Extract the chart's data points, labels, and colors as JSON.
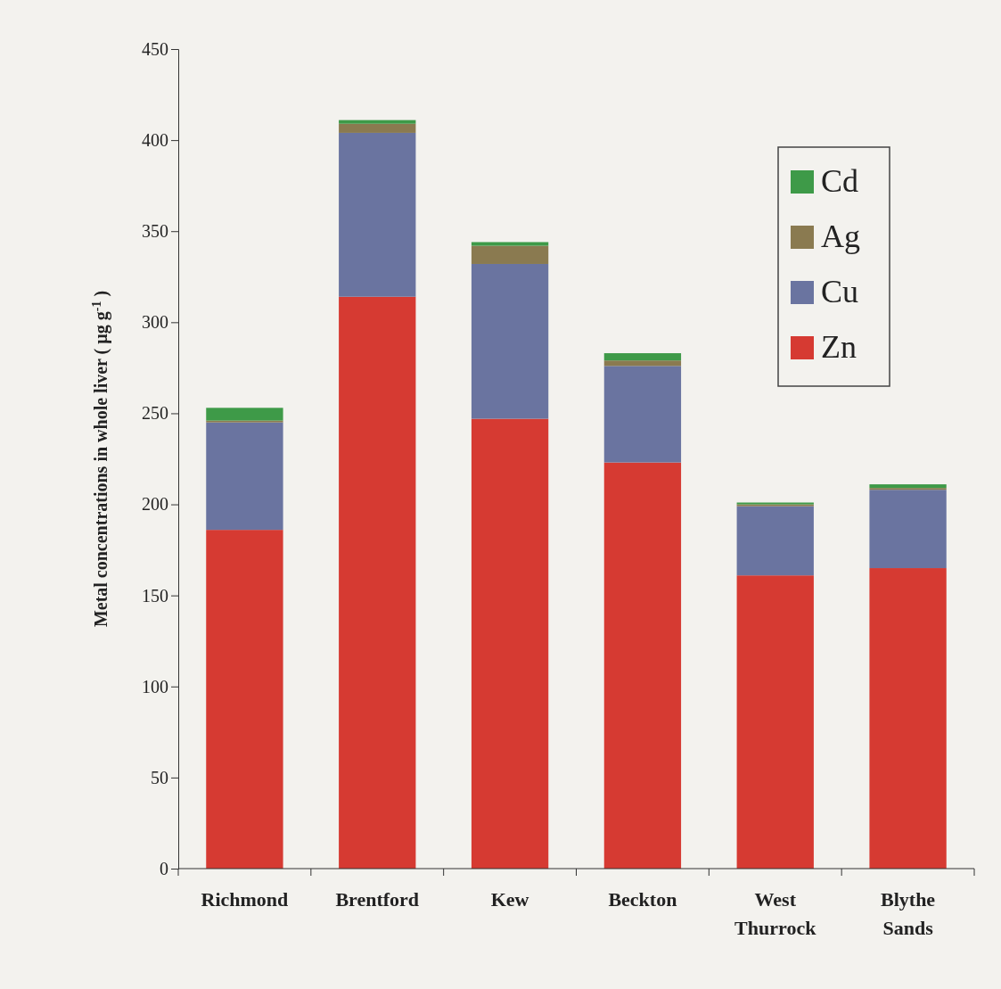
{
  "chart_data": {
    "type": "bar",
    "stacked": true,
    "ylabel": "Metal concentrations in whole liver ( µg g$^{-1}$ )",
    "categories": [
      "Richmond",
      "Brentford",
      "Kew",
      "Beckton",
      "West Thurrock",
      "Blythe Sands"
    ],
    "series": [
      {
        "name": "Zn",
        "color": "#d63a32",
        "values": [
          186,
          314,
          247,
          223,
          161,
          165
        ]
      },
      {
        "name": "Cu",
        "color": "#6a74a0",
        "values": [
          59,
          90,
          85,
          53,
          38,
          43
        ]
      },
      {
        "name": "Ag",
        "color": "#8a7a50",
        "values": [
          1,
          5,
          10,
          3,
          1,
          1
        ]
      },
      {
        "name": "Cd",
        "color": "#3e9a48",
        "values": [
          7,
          2,
          2,
          4,
          1,
          2
        ]
      }
    ],
    "ylim": [
      0,
      450
    ],
    "yticks": [
      0,
      50,
      100,
      150,
      200,
      250,
      300,
      350,
      400,
      450
    ],
    "legend": "top right"
  }
}
